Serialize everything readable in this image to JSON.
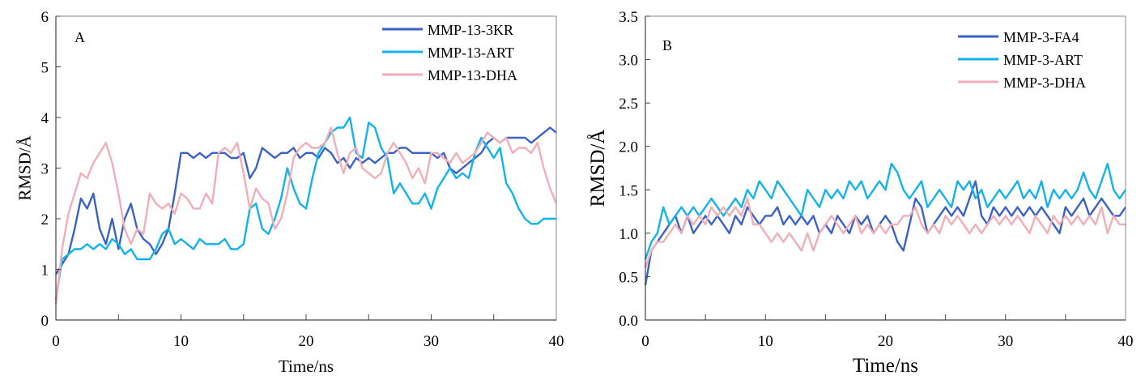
{
  "chart_data": [
    {
      "type": "line",
      "panel_label": "A",
      "xlabel": "Time/ns",
      "ylabel": "RMSD/Å",
      "xlim": [
        0,
        40
      ],
      "ylim": [
        0,
        6
      ],
      "xticks": [
        "0",
        "10",
        "20",
        "30",
        "40"
      ],
      "yticks": [
        "0",
        "1",
        "2",
        "3",
        "4",
        "5",
        "6"
      ],
      "grid": false,
      "legend": "top-right",
      "x": [
        0,
        0.5,
        1,
        1.5,
        2,
        2.5,
        3,
        3.5,
        4,
        4.5,
        5,
        5.5,
        6,
        6.5,
        7,
        7.5,
        8,
        8.5,
        9,
        9.5,
        10,
        10.5,
        11,
        11.5,
        12,
        12.5,
        13,
        13.5,
        14,
        14.5,
        15,
        15.5,
        16,
        16.5,
        17,
        17.5,
        18,
        18.5,
        19,
        19.5,
        20,
        20.5,
        21,
        21.5,
        22,
        22.5,
        23,
        23.5,
        24,
        24.5,
        25,
        25.5,
        26,
        26.5,
        27,
        27.5,
        28,
        28.5,
        29,
        29.5,
        30,
        30.5,
        31,
        31.5,
        32,
        32.5,
        33,
        33.5,
        34,
        34.5,
        35,
        35.5,
        36,
        36.5,
        37,
        37.5,
        38,
        38.5,
        39,
        39.5,
        40
      ],
      "series": [
        {
          "name": "MMP-13-3KR",
          "color": "#3a62c6",
          "values": [
            0.9,
            1.1,
            1.3,
            1.8,
            2.4,
            2.2,
            2.5,
            1.8,
            1.5,
            2.0,
            1.4,
            2.0,
            2.3,
            1.8,
            1.6,
            1.5,
            1.3,
            1.5,
            1.8,
            2.5,
            3.3,
            3.3,
            3.2,
            3.3,
            3.2,
            3.3,
            3.3,
            3.3,
            3.2,
            3.2,
            3.3,
            2.8,
            3.0,
            3.4,
            3.3,
            3.2,
            3.3,
            3.3,
            3.4,
            3.2,
            3.3,
            3.3,
            3.2,
            3.4,
            3.3,
            3.1,
            3.2,
            3.0,
            3.2,
            3.1,
            3.2,
            3.1,
            3.2,
            3.3,
            3.3,
            3.4,
            3.4,
            3.3,
            3.3,
            3.3,
            3.3,
            3.2,
            3.3,
            3.0,
            2.9,
            3.0,
            3.1,
            3.2,
            3.3,
            3.5,
            3.6,
            3.5,
            3.6,
            3.6,
            3.6,
            3.6,
            3.5,
            3.6,
            3.7,
            3.8,
            3.7
          ]
        },
        {
          "name": "MMP-13-ART",
          "color": "#12b2ea",
          "values": [
            0.4,
            1.2,
            1.3,
            1.4,
            1.4,
            1.5,
            1.4,
            1.5,
            1.4,
            1.6,
            1.5,
            1.3,
            1.4,
            1.2,
            1.2,
            1.2,
            1.4,
            1.7,
            1.8,
            1.5,
            1.6,
            1.5,
            1.4,
            1.6,
            1.5,
            1.5,
            1.5,
            1.6,
            1.4,
            1.4,
            1.5,
            2.2,
            2.3,
            1.8,
            1.7,
            2.0,
            2.4,
            3.0,
            2.6,
            2.3,
            2.2,
            2.8,
            3.3,
            3.5,
            3.7,
            3.8,
            3.8,
            4.0,
            3.3,
            3.2,
            3.9,
            3.8,
            3.4,
            3.2,
            2.5,
            2.7,
            2.5,
            2.3,
            2.3,
            2.5,
            2.2,
            2.6,
            2.8,
            3.0,
            2.8,
            2.9,
            2.8,
            3.3,
            3.6,
            3.4,
            3.2,
            3.4,
            2.7,
            2.5,
            2.2,
            2.0,
            1.9,
            1.9,
            2.0,
            2.0,
            2.0
          ]
        },
        {
          "name": "MMP-13-DHA",
          "color": "#f0aeb6",
          "values": [
            0.3,
            1.4,
            2.1,
            2.5,
            2.9,
            2.8,
            3.1,
            3.3,
            3.5,
            3.1,
            2.5,
            1.8,
            1.5,
            1.8,
            1.7,
            2.5,
            2.3,
            2.2,
            2.3,
            2.1,
            2.5,
            2.4,
            2.2,
            2.2,
            2.5,
            2.3,
            3.3,
            3.4,
            3.3,
            3.5,
            2.9,
            2.2,
            2.6,
            2.4,
            2.3,
            1.8,
            2.0,
            2.5,
            3.2,
            3.4,
            3.5,
            3.4,
            3.4,
            3.5,
            3.8,
            3.3,
            2.9,
            3.3,
            3.4,
            3.0,
            2.9,
            2.8,
            2.9,
            3.3,
            3.5,
            3.3,
            3.1,
            2.8,
            3.0,
            2.7,
            3.3,
            3.3,
            3.2,
            3.1,
            3.3,
            3.1,
            3.2,
            3.3,
            3.5,
            3.7,
            3.6,
            3.5,
            3.6,
            3.3,
            3.4,
            3.4,
            3.3,
            3.5,
            3.0,
            2.6,
            2.3
          ]
        }
      ]
    },
    {
      "type": "line",
      "panel_label": "B",
      "xlabel": "Time/ns",
      "ylabel": "RMSD/Å",
      "xlim": [
        0,
        40
      ],
      "ylim": [
        0,
        3.5
      ],
      "xticks": [
        "0",
        "10",
        "20",
        "30",
        "40"
      ],
      "yticks": [
        "0.0",
        "0.5",
        "1.0",
        "1.5",
        "2.0",
        "2.5",
        "3.0",
        "3.5"
      ],
      "grid": false,
      "legend": "top-right",
      "x": [
        0,
        0.5,
        1,
        1.5,
        2,
        2.5,
        3,
        3.5,
        4,
        4.5,
        5,
        5.5,
        6,
        6.5,
        7,
        7.5,
        8,
        8.5,
        9,
        9.5,
        10,
        10.5,
        11,
        11.5,
        12,
        12.5,
        13,
        13.5,
        14,
        14.5,
        15,
        15.5,
        16,
        16.5,
        17,
        17.5,
        18,
        18.5,
        19,
        19.5,
        20,
        20.5,
        21,
        21.5,
        22,
        22.5,
        23,
        23.5,
        24,
        24.5,
        25,
        25.5,
        26,
        26.5,
        27,
        27.5,
        28,
        28.5,
        29,
        29.5,
        30,
        30.5,
        31,
        31.5,
        32,
        32.5,
        33,
        33.5,
        34,
        34.5,
        35,
        35.5,
        36,
        36.5,
        37,
        37.5,
        38,
        38.5,
        39,
        39.5,
        40
      ],
      "series": [
        {
          "name": "MMP-3-FA4",
          "color": "#3a62c6",
          "values": [
            0.4,
            0.8,
            0.9,
            1.0,
            1.1,
            1.2,
            1.0,
            1.2,
            1.0,
            1.1,
            1.2,
            1.1,
            1.2,
            1.1,
            1.0,
            1.2,
            1.1,
            1.3,
            1.2,
            1.1,
            1.2,
            1.2,
            1.3,
            1.1,
            1.2,
            1.1,
            1.2,
            1.1,
            1.2,
            1.0,
            1.1,
            1.0,
            1.2,
            1.1,
            1.0,
            1.2,
            1.1,
            1.2,
            1.0,
            1.1,
            1.2,
            1.1,
            0.9,
            0.8,
            1.1,
            1.4,
            1.3,
            1.0,
            1.1,
            1.2,
            1.3,
            1.2,
            1.3,
            1.2,
            1.4,
            1.6,
            1.2,
            1.1,
            1.3,
            1.2,
            1.3,
            1.2,
            1.3,
            1.2,
            1.3,
            1.2,
            1.3,
            1.2,
            1.1,
            1.0,
            1.3,
            1.2,
            1.3,
            1.4,
            1.2,
            1.3,
            1.4,
            1.3,
            1.2,
            1.2,
            1.3
          ]
        },
        {
          "name": "MMP-3-ART",
          "color": "#12b2ea",
          "values": [
            0.7,
            0.9,
            1.0,
            1.3,
            1.1,
            1.2,
            1.3,
            1.2,
            1.3,
            1.2,
            1.3,
            1.4,
            1.3,
            1.2,
            1.3,
            1.4,
            1.3,
            1.5,
            1.4,
            1.6,
            1.5,
            1.4,
            1.6,
            1.5,
            1.4,
            1.3,
            1.2,
            1.5,
            1.4,
            1.3,
            1.5,
            1.4,
            1.5,
            1.4,
            1.6,
            1.5,
            1.6,
            1.4,
            1.5,
            1.6,
            1.5,
            1.8,
            1.7,
            1.5,
            1.4,
            1.5,
            1.6,
            1.3,
            1.4,
            1.5,
            1.4,
            1.3,
            1.6,
            1.5,
            1.6,
            1.4,
            1.5,
            1.3,
            1.4,
            1.5,
            1.4,
            1.5,
            1.6,
            1.4,
            1.5,
            1.4,
            1.6,
            1.3,
            1.5,
            1.4,
            1.5,
            1.4,
            1.5,
            1.7,
            1.5,
            1.4,
            1.6,
            1.8,
            1.5,
            1.4,
            1.5
          ]
        },
        {
          "name": "MMP-3-DHA",
          "color": "#f0aeb6",
          "values": [
            0.6,
            0.8,
            0.9,
            0.9,
            1.0,
            1.1,
            1.0,
            1.2,
            1.1,
            1.2,
            1.1,
            1.3,
            1.2,
            1.3,
            1.2,
            1.3,
            1.2,
            1.4,
            1.1,
            1.1,
            1.0,
            0.9,
            1.0,
            0.9,
            1.0,
            0.9,
            0.8,
            1.0,
            0.8,
            1.0,
            1.1,
            1.2,
            1.1,
            1.0,
            1.1,
            1.2,
            1.0,
            1.1,
            1.0,
            1.1,
            1.0,
            1.1,
            1.1,
            1.2,
            1.2,
            1.3,
            1.1,
            1.0,
            1.1,
            1.0,
            1.2,
            1.1,
            1.2,
            1.1,
            1.0,
            1.1,
            1.0,
            1.1,
            1.2,
            1.1,
            1.2,
            1.1,
            1.2,
            1.1,
            1.0,
            1.2,
            1.1,
            1.0,
            1.2,
            1.1,
            1.2,
            1.1,
            1.2,
            1.1,
            1.2,
            1.1,
            1.3,
            1.0,
            1.2,
            1.1,
            1.1
          ]
        }
      ]
    }
  ]
}
